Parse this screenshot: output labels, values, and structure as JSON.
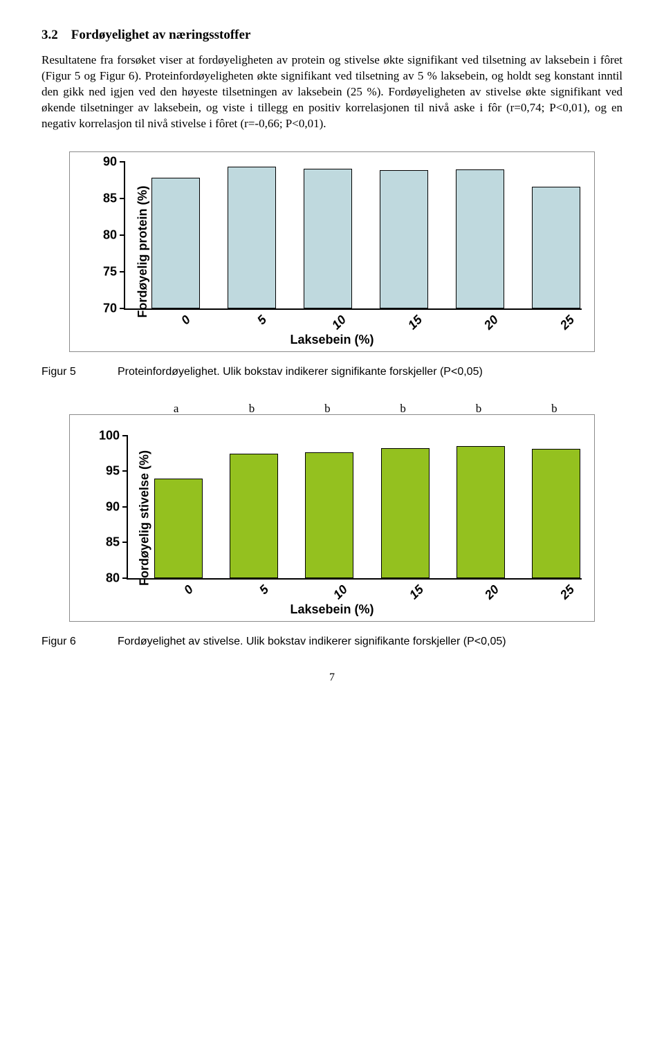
{
  "section": {
    "number": "3.2",
    "title": "Fordøyelighet av næringsstoffer"
  },
  "paragraph": "Resultatene fra forsøket viser at fordøyeligheten av protein og stivelse økte signifikant ved tilsetning av laksebein i fôret (Figur 5 og Figur 6). Proteinfordøyeligheten økte signifikant ved tilsetning av 5 % laksebein, og holdt seg konstant inntil den gikk ned igjen ved den høyeste tilsetningen av laksebein (25 %). Fordøyeligheten av stivelse økte signifikant ved økende tilsetninger av laksebein, og viste i tillegg en positiv korrelasjonen til nivå aske i fôr (r=0,74; P<0,01), og en negativ korrelasjon til nivå stivelse i fôret (r=-0,66; P<0,01).",
  "chart1": {
    "type": "bar",
    "y_label": "Fordøyelig protein (%)",
    "x_label": "Laksebein (%)",
    "categories": [
      "0",
      "5",
      "10",
      "15",
      "20",
      "25"
    ],
    "values": [
      87.8,
      89.3,
      89.0,
      88.8,
      88.9,
      86.6
    ],
    "ylim": [
      70,
      90
    ],
    "ytick_step": 5,
    "bar_color": "#bfd9de",
    "border_color": "#000000",
    "background_color": "#ffffff",
    "label_font_family": "Arial",
    "label_font_weight": "bold",
    "label_font_size": 18
  },
  "caption1": {
    "label": "Figur 5",
    "text": "Proteinfordøyelighet. Ulik bokstav indikerer signifikante forskjeller (P<0,05)"
  },
  "chart2": {
    "type": "bar",
    "y_label": "Fordøyelig stivelse (%)",
    "x_label": "Laksebein (%)",
    "categories": [
      "0",
      "5",
      "10",
      "15",
      "20",
      "25"
    ],
    "values": [
      94.0,
      97.4,
      97.6,
      98.2,
      98.5,
      98.1
    ],
    "sig_labels": [
      "a",
      "b",
      "b",
      "b",
      "b",
      "b"
    ],
    "ylim": [
      80,
      100
    ],
    "ytick_step": 5,
    "bar_color": "#94c11f",
    "border_color": "#000000",
    "background_color": "#ffffff",
    "label_font_family": "Arial",
    "label_font_weight": "bold",
    "label_font_size": 18
  },
  "caption2": {
    "label": "Figur 6",
    "text": "Fordøyelighet av stivelse. Ulik bokstav indikerer signifikante forskjeller (P<0,05)"
  },
  "page_number": "7"
}
